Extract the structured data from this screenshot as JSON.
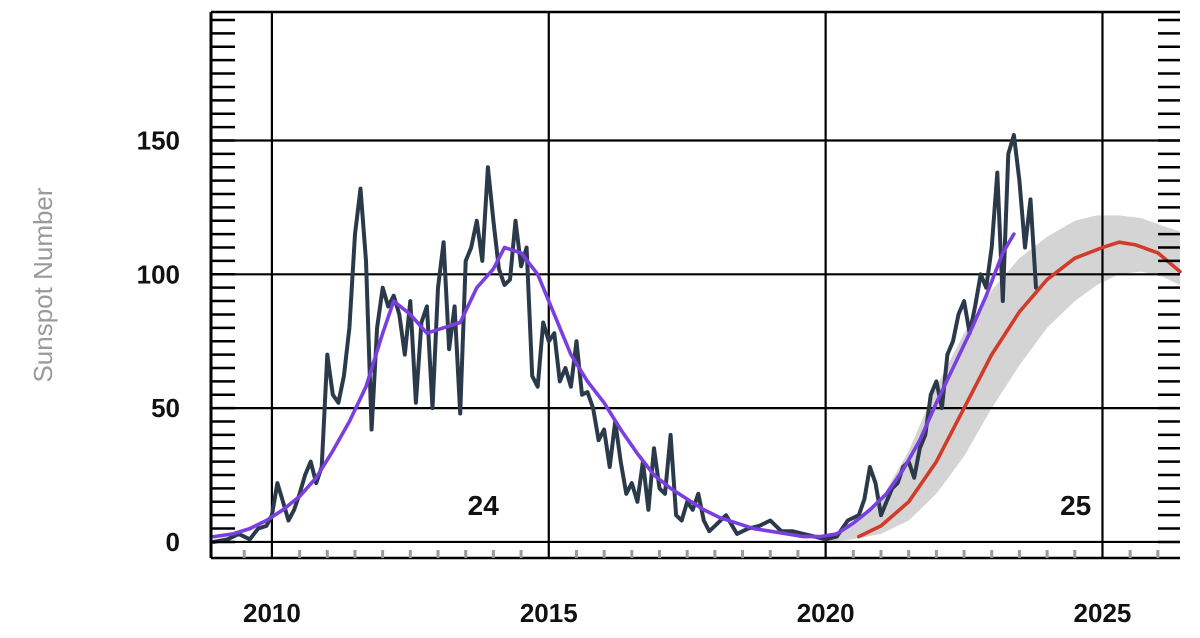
{
  "chart_data": {
    "type": "line",
    "ylabel": "Sunspot Number",
    "xlim": [
      2008.9,
      2026.4
    ],
    "ylim": [
      -6,
      198
    ],
    "x_ticks": [
      2010,
      2015,
      2020,
      2025
    ],
    "x_tick_labels": [
      "2010",
      "2015",
      "2020",
      "2025"
    ],
    "y_ticks": [
      0,
      50,
      100,
      150
    ],
    "y_tick_labels": [
      "0",
      "50",
      "100",
      "150"
    ],
    "grid": true,
    "annotations": [
      {
        "text": "24",
        "x": 2014.9,
        "y": 10
      },
      {
        "text": "25",
        "x": 2025.6,
        "y": 10
      }
    ],
    "colors": {
      "monthly": "#2b3a4a",
      "smoothed": "#7b3fe0",
      "predicted": "#d23a2a",
      "prediction_band": "#d4d4d4",
      "grid": "#000000"
    },
    "series": [
      {
        "role": "monthly",
        "x": [
          2008.95,
          2009.2,
          2009.4,
          2009.6,
          2009.75,
          2009.9,
          2010.0,
          2010.1,
          2010.2,
          2010.3,
          2010.4,
          2010.5,
          2010.6,
          2010.7,
          2010.8,
          2010.9,
          2011.0,
          2011.1,
          2011.2,
          2011.3,
          2011.4,
          2011.5,
          2011.6,
          2011.7,
          2011.8,
          2011.9,
          2012.0,
          2012.1,
          2012.2,
          2012.3,
          2012.4,
          2012.5,
          2012.6,
          2012.7,
          2012.8,
          2012.9,
          2013.0,
          2013.1,
          2013.2,
          2013.3,
          2013.4,
          2013.5,
          2013.6,
          2013.7,
          2013.8,
          2013.9,
          2014.0,
          2014.1,
          2014.2,
          2014.3,
          2014.4,
          2014.5,
          2014.6,
          2014.7,
          2014.8,
          2014.9,
          2015.0,
          2015.1,
          2015.2,
          2015.3,
          2015.4,
          2015.5,
          2015.6,
          2015.7,
          2015.8,
          2015.9,
          2016.0,
          2016.1,
          2016.2,
          2016.3,
          2016.4,
          2016.5,
          2016.6,
          2016.7,
          2016.8,
          2016.9,
          2017.0,
          2017.1,
          2017.2,
          2017.3,
          2017.4,
          2017.5,
          2017.6,
          2017.7,
          2017.8,
          2017.9,
          2018.0,
          2018.2,
          2018.4,
          2018.6,
          2018.8,
          2019.0,
          2019.2,
          2019.4,
          2019.6,
          2019.8,
          2020.0,
          2020.2,
          2020.4,
          2020.6,
          2020.7,
          2020.8,
          2020.9,
          2021.0,
          2021.1,
          2021.2,
          2021.3,
          2021.4,
          2021.5,
          2021.6,
          2021.7,
          2021.8,
          2021.9,
          2022.0,
          2022.1,
          2022.2,
          2022.3,
          2022.4,
          2022.5,
          2022.6,
          2022.7,
          2022.8,
          2022.9,
          2023.0,
          2023.1,
          2023.2,
          2023.3,
          2023.4,
          2023.5,
          2023.6,
          2023.7,
          2023.8
        ],
        "y": [
          0,
          1,
          3,
          1,
          5,
          6,
          10,
          22,
          15,
          8,
          12,
          18,
          25,
          30,
          22,
          28,
          70,
          55,
          52,
          62,
          80,
          115,
          132,
          105,
          42,
          80,
          95,
          88,
          92,
          85,
          70,
          90,
          52,
          82,
          88,
          50,
          95,
          112,
          72,
          88,
          48,
          105,
          110,
          120,
          105,
          140,
          120,
          102,
          96,
          98,
          120,
          103,
          110,
          62,
          58,
          82,
          75,
          78,
          60,
          65,
          58,
          75,
          55,
          56,
          50,
          38,
          42,
          28,
          45,
          30,
          18,
          22,
          15,
          30,
          12,
          35,
          20,
          18,
          40,
          10,
          8,
          15,
          12,
          18,
          8,
          4,
          6,
          10,
          3,
          5,
          6,
          8,
          4,
          4,
          3,
          2,
          1,
          2,
          8,
          10,
          16,
          28,
          22,
          10,
          15,
          20,
          22,
          28,
          30,
          24,
          35,
          40,
          55,
          60,
          50,
          70,
          75,
          85,
          90,
          78,
          88,
          100,
          95,
          110,
          138,
          90,
          145,
          152,
          135,
          110,
          128,
          95
        ]
      },
      {
        "role": "smoothed",
        "x": [
          2008.95,
          2009.3,
          2009.6,
          2009.9,
          2010.2,
          2010.5,
          2010.8,
          2011.1,
          2011.4,
          2011.7,
          2012.0,
          2012.2,
          2012.5,
          2012.8,
          2013.1,
          2013.4,
          2013.7,
          2014.0,
          2014.2,
          2014.5,
          2014.8,
          2015.1,
          2015.4,
          2015.7,
          2016.0,
          2016.3,
          2016.6,
          2016.9,
          2017.2,
          2017.5,
          2017.8,
          2018.1,
          2018.4,
          2018.7,
          2019.0,
          2019.3,
          2019.6,
          2019.9,
          2020.2,
          2020.5,
          2020.8,
          2021.1,
          2021.4,
          2021.7,
          2022.0,
          2022.3,
          2022.6,
          2022.9,
          2023.2,
          2023.4
        ],
        "y": [
          2,
          3,
          5,
          8,
          12,
          17,
          24,
          34,
          45,
          58,
          78,
          90,
          85,
          78,
          80,
          82,
          95,
          102,
          110,
          108,
          100,
          85,
          70,
          60,
          52,
          42,
          33,
          25,
          20,
          16,
          12,
          9,
          7,
          5,
          4,
          3,
          2,
          2,
          3,
          7,
          12,
          18,
          27,
          38,
          52,
          65,
          78,
          92,
          108,
          115
        ]
      },
      {
        "role": "predicted",
        "x": [
          2020.6,
          2021.0,
          2021.5,
          2022.0,
          2022.5,
          2023.0,
          2023.5,
          2024.0,
          2024.5,
          2025.0,
          2025.3,
          2025.6,
          2026.0,
          2026.4
        ],
        "y": [
          2,
          6,
          15,
          30,
          50,
          70,
          86,
          98,
          106,
          110,
          112,
          111,
          108,
          101
        ]
      },
      {
        "role": "prediction_band",
        "x": [
          2020.0,
          2020.5,
          2021.0,
          2021.5,
          2022.0,
          2022.5,
          2023.0,
          2023.5,
          2024.0,
          2024.5,
          2024.9,
          2025.3,
          2025.7,
          2026.1,
          2026.4
        ],
        "y_high": [
          2,
          6,
          16,
          34,
          58,
          78,
          94,
          106,
          114,
          120,
          122,
          122,
          121,
          118,
          116
        ],
        "y_low": [
          0,
          1,
          3,
          8,
          18,
          32,
          50,
          66,
          80,
          90,
          96,
          100,
          101,
          99,
          96
        ]
      }
    ]
  }
}
